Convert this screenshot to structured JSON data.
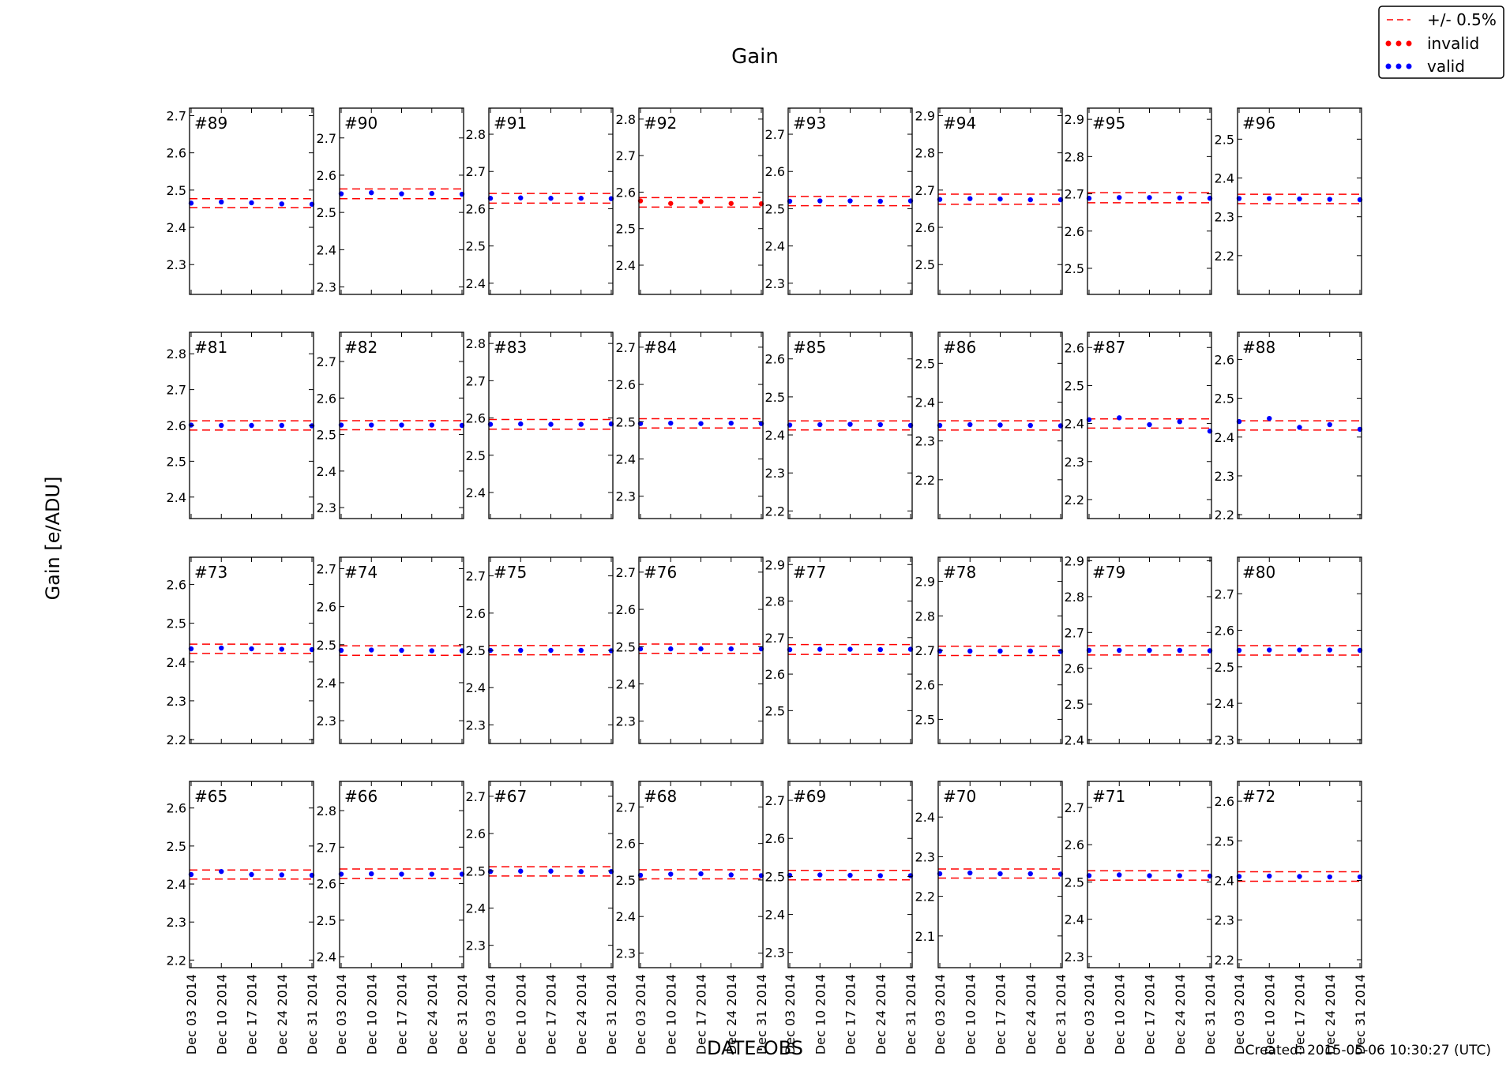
{
  "chart_data": {
    "type": "scatter",
    "title": "Gain",
    "xlabel": "DATE-OBS",
    "ylabel": "Gain [e/ADU]",
    "footer": "Created: 2015-05-06 10:30:27 (UTC)",
    "legend": {
      "placement": "top-right",
      "entries": [
        {
          "label": "+/- 0.5%",
          "marker": "dashed-line",
          "color": "#ff0000"
        },
        {
          "label": "invalid",
          "marker": "dots",
          "color": "#ff0000"
        },
        {
          "label": "valid",
          "marker": "dots",
          "color": "#0000ff"
        }
      ]
    },
    "colors": {
      "valid": "#0000ff",
      "invalid": "#ff0000",
      "band": "#ff0000"
    },
    "x": [
      "2014-12-03",
      "2014-12-10",
      "2014-12-17",
      "2014-12-24",
      "2014-12-31"
    ],
    "x_tick_labels": [
      "Dec 03 2014",
      "Dec 10 2014",
      "Dec 17 2014",
      "Dec 24 2014",
      "Dec 31 2014"
    ],
    "band_pct": 0.5,
    "panels": [
      {
        "label": "#89",
        "ylim": [
          2.22,
          2.72
        ],
        "yticks": [
          2.3,
          2.4,
          2.5,
          2.6,
          2.7
        ],
        "band": [
          2.453,
          2.477
        ],
        "values": [
          2.465,
          2.468,
          2.466,
          2.463,
          2.462
        ],
        "invalid": [
          false,
          false,
          false,
          false,
          false
        ]
      },
      {
        "label": "#90",
        "ylim": [
          2.28,
          2.78
        ],
        "yticks": [
          2.3,
          2.4,
          2.5,
          2.6,
          2.7
        ],
        "band": [
          2.537,
          2.563
        ],
        "values": [
          2.55,
          2.553,
          2.55,
          2.551,
          2.549
        ],
        "invalid": [
          false,
          false,
          false,
          false,
          false
        ]
      },
      {
        "label": "#91",
        "ylim": [
          2.37,
          2.87
        ],
        "yticks": [
          2.4,
          2.5,
          2.6,
          2.7,
          2.8
        ],
        "band": [
          2.615,
          2.641
        ],
        "values": [
          2.628,
          2.629,
          2.628,
          2.628,
          2.627
        ],
        "invalid": [
          false,
          false,
          false,
          false,
          false
        ]
      },
      {
        "label": "#92",
        "ylim": [
          2.32,
          2.83
        ],
        "yticks": [
          2.4,
          2.5,
          2.6,
          2.7,
          2.8
        ],
        "band": [
          2.559,
          2.585
        ],
        "values": [
          2.576,
          2.569,
          2.574,
          2.569,
          2.568
        ],
        "invalid": [
          true,
          true,
          true,
          true,
          true
        ]
      },
      {
        "label": "#93",
        "ylim": [
          2.27,
          2.77
        ],
        "yticks": [
          2.3,
          2.4,
          2.5,
          2.6,
          2.7
        ],
        "band": [
          2.508,
          2.533
        ],
        "values": [
          2.52,
          2.521,
          2.521,
          2.52,
          2.521
        ],
        "invalid": [
          false,
          false,
          false,
          false,
          false
        ]
      },
      {
        "label": "#94",
        "ylim": [
          2.42,
          2.92
        ],
        "yticks": [
          2.5,
          2.6,
          2.7,
          2.8,
          2.9
        ],
        "band": [
          2.662,
          2.689
        ],
        "values": [
          2.675,
          2.677,
          2.676,
          2.674,
          2.674
        ],
        "invalid": [
          false,
          false,
          false,
          false,
          false
        ]
      },
      {
        "label": "#95",
        "ylim": [
          2.43,
          2.93
        ],
        "yticks": [
          2.5,
          2.6,
          2.7,
          2.8,
          2.9
        ],
        "band": [
          2.676,
          2.703
        ],
        "values": [
          2.688,
          2.69,
          2.69,
          2.689,
          2.688
        ],
        "invalid": [
          false,
          false,
          false,
          false,
          false
        ]
      },
      {
        "label": "#96",
        "ylim": [
          2.1,
          2.58
        ],
        "yticks": [
          2.2,
          2.3,
          2.4,
          2.5
        ],
        "band": [
          2.334,
          2.358
        ],
        "values": [
          2.347,
          2.347,
          2.346,
          2.345,
          2.344
        ],
        "invalid": [
          false,
          false,
          false,
          false,
          false
        ]
      },
      {
        "label": "#81",
        "ylim": [
          2.34,
          2.86
        ],
        "yticks": [
          2.4,
          2.5,
          2.6,
          2.7,
          2.8
        ],
        "band": [
          2.587,
          2.613
        ],
        "values": [
          2.601,
          2.6,
          2.6,
          2.6,
          2.599
        ],
        "invalid": [
          false,
          false,
          false,
          false,
          false
        ]
      },
      {
        "label": "#82",
        "ylim": [
          2.27,
          2.78
        ],
        "yticks": [
          2.3,
          2.4,
          2.5,
          2.6,
          2.7
        ],
        "band": [
          2.513,
          2.538
        ],
        "values": [
          2.526,
          2.526,
          2.526,
          2.526,
          2.525
        ],
        "invalid": [
          false,
          false,
          false,
          false,
          false
        ]
      },
      {
        "label": "#83",
        "ylim": [
          2.33,
          2.83
        ],
        "yticks": [
          2.4,
          2.5,
          2.6,
          2.7,
          2.8
        ],
        "band": [
          2.57,
          2.596
        ],
        "values": [
          2.583,
          2.584,
          2.583,
          2.583,
          2.584
        ],
        "invalid": [
          false,
          false,
          false,
          false,
          false
        ]
      },
      {
        "label": "#84",
        "ylim": [
          2.24,
          2.74
        ],
        "yticks": [
          2.3,
          2.4,
          2.5,
          2.6,
          2.7
        ],
        "band": [
          2.483,
          2.508
        ],
        "values": [
          2.495,
          2.496,
          2.495,
          2.496,
          2.495
        ],
        "invalid": [
          false,
          false,
          false,
          false,
          false
        ]
      },
      {
        "label": "#85",
        "ylim": [
          2.18,
          2.67
        ],
        "yticks": [
          2.2,
          2.3,
          2.4,
          2.5,
          2.6
        ],
        "band": [
          2.413,
          2.437
        ],
        "values": [
          2.426,
          2.427,
          2.428,
          2.427,
          2.425
        ],
        "invalid": [
          false,
          false,
          false,
          false,
          false
        ]
      },
      {
        "label": "#86",
        "ylim": [
          2.1,
          2.58
        ],
        "yticks": [
          2.2,
          2.3,
          2.4,
          2.5
        ],
        "band": [
          2.328,
          2.352
        ],
        "values": [
          2.34,
          2.342,
          2.341,
          2.34,
          2.339
        ],
        "invalid": [
          false,
          false,
          false,
          false,
          false
        ]
      },
      {
        "label": "#87",
        "ylim": [
          2.15,
          2.64
        ],
        "yticks": [
          2.2,
          2.3,
          2.4,
          2.5,
          2.6
        ],
        "band": [
          2.388,
          2.412
        ],
        "values": [
          2.41,
          2.415,
          2.397,
          2.405,
          2.38
        ],
        "invalid": [
          false,
          false,
          false,
          false,
          false
        ]
      },
      {
        "label": "#88",
        "ylim": [
          2.19,
          2.67
        ],
        "yticks": [
          2.2,
          2.3,
          2.4,
          2.5,
          2.6
        ],
        "band": [
          2.418,
          2.442
        ],
        "values": [
          2.44,
          2.448,
          2.425,
          2.432,
          2.42
        ],
        "invalid": [
          false,
          false,
          false,
          false,
          false
        ]
      },
      {
        "label": "#73",
        "ylim": [
          2.19,
          2.67
        ],
        "yticks": [
          2.2,
          2.3,
          2.4,
          2.5,
          2.6
        ],
        "band": [
          2.422,
          2.446
        ],
        "values": [
          2.434,
          2.436,
          2.434,
          2.433,
          2.432
        ],
        "invalid": [
          false,
          false,
          false,
          false,
          false
        ]
      },
      {
        "label": "#74",
        "ylim": [
          2.24,
          2.73
        ],
        "yticks": [
          2.3,
          2.4,
          2.5,
          2.6,
          2.7
        ],
        "band": [
          2.472,
          2.497
        ],
        "values": [
          2.485,
          2.486,
          2.485,
          2.484,
          2.484
        ],
        "invalid": [
          false,
          false,
          false,
          false,
          false
        ]
      },
      {
        "label": "#75",
        "ylim": [
          2.25,
          2.75
        ],
        "yticks": [
          2.3,
          2.4,
          2.5,
          2.6,
          2.7
        ],
        "band": [
          2.488,
          2.513
        ],
        "values": [
          2.5,
          2.5,
          2.5,
          2.5,
          2.499
        ],
        "invalid": [
          false,
          false,
          false,
          false,
          false
        ]
      },
      {
        "label": "#76",
        "ylim": [
          2.24,
          2.74
        ],
        "yticks": [
          2.3,
          2.4,
          2.5,
          2.6,
          2.7
        ],
        "band": [
          2.482,
          2.507
        ],
        "values": [
          2.494,
          2.494,
          2.494,
          2.494,
          2.494
        ],
        "invalid": [
          false,
          false,
          false,
          false,
          false
        ]
      },
      {
        "label": "#77",
        "ylim": [
          2.41,
          2.92
        ],
        "yticks": [
          2.5,
          2.6,
          2.7,
          2.8,
          2.9
        ],
        "band": [
          2.654,
          2.681
        ],
        "values": [
          2.667,
          2.668,
          2.668,
          2.667,
          2.668
        ],
        "invalid": [
          false,
          false,
          false,
          false,
          false
        ]
      },
      {
        "label": "#78",
        "ylim": [
          2.43,
          2.97
        ],
        "yticks": [
          2.5,
          2.6,
          2.7,
          2.8,
          2.9
        ],
        "band": [
          2.685,
          2.712
        ],
        "values": [
          2.698,
          2.698,
          2.698,
          2.698,
          2.697
        ],
        "invalid": [
          false,
          false,
          false,
          false,
          false
        ]
      },
      {
        "label": "#79",
        "ylim": [
          2.39,
          2.91
        ],
        "yticks": [
          2.4,
          2.5,
          2.6,
          2.7,
          2.8,
          2.9
        ],
        "band": [
          2.637,
          2.663
        ],
        "values": [
          2.65,
          2.65,
          2.65,
          2.65,
          2.649
        ],
        "invalid": [
          false,
          false,
          false,
          false,
          false
        ]
      },
      {
        "label": "#80",
        "ylim": [
          2.29,
          2.8
        ],
        "yticks": [
          2.3,
          2.4,
          2.5,
          2.6,
          2.7
        ],
        "band": [
          2.532,
          2.558
        ],
        "values": [
          2.545,
          2.546,
          2.546,
          2.546,
          2.545
        ],
        "invalid": [
          false,
          false,
          false,
          false,
          false
        ]
      },
      {
        "label": "#65",
        "ylim": [
          2.18,
          2.67
        ],
        "yticks": [
          2.2,
          2.3,
          2.4,
          2.5,
          2.6
        ],
        "band": [
          2.413,
          2.437
        ],
        "values": [
          2.425,
          2.433,
          2.425,
          2.424,
          2.423
        ],
        "invalid": [
          false,
          false,
          false,
          false,
          false
        ]
      },
      {
        "label": "#66",
        "ylim": [
          2.37,
          2.88
        ],
        "yticks": [
          2.4,
          2.5,
          2.6,
          2.7,
          2.8
        ],
        "band": [
          2.614,
          2.64
        ],
        "values": [
          2.626,
          2.627,
          2.626,
          2.626,
          2.626
        ],
        "invalid": [
          false,
          false,
          false,
          false,
          false
        ]
      },
      {
        "label": "#67",
        "ylim": [
          2.24,
          2.74
        ],
        "yticks": [
          2.3,
          2.4,
          2.5,
          2.6,
          2.7
        ],
        "band": [
          2.486,
          2.511
        ],
        "values": [
          2.498,
          2.499,
          2.499,
          2.498,
          2.498
        ],
        "invalid": [
          false,
          false,
          false,
          false,
          false
        ]
      },
      {
        "label": "#68",
        "ylim": [
          2.26,
          2.77
        ],
        "yticks": [
          2.3,
          2.4,
          2.5,
          2.6,
          2.7
        ],
        "band": [
          2.503,
          2.528
        ],
        "values": [
          2.513,
          2.516,
          2.517,
          2.514,
          2.512
        ],
        "invalid": [
          false,
          false,
          false,
          false,
          false
        ]
      },
      {
        "label": "#69",
        "ylim": [
          2.26,
          2.75
        ],
        "yticks": [
          2.3,
          2.4,
          2.5,
          2.6,
          2.7
        ],
        "band": [
          2.491,
          2.516
        ],
        "values": [
          2.503,
          2.504,
          2.503,
          2.502,
          2.502
        ],
        "invalid": [
          false,
          false,
          false,
          false,
          false
        ]
      },
      {
        "label": "#70",
        "ylim": [
          2.02,
          2.49
        ],
        "yticks": [
          2.1,
          2.2,
          2.3,
          2.4
        ],
        "band": [
          2.246,
          2.269
        ],
        "values": [
          2.257,
          2.259,
          2.257,
          2.257,
          2.256
        ],
        "invalid": [
          false,
          false,
          false,
          false,
          false
        ]
      },
      {
        "label": "#71",
        "ylim": [
          2.27,
          2.77
        ],
        "yticks": [
          2.3,
          2.4,
          2.5,
          2.6,
          2.7
        ],
        "band": [
          2.505,
          2.53
        ],
        "values": [
          2.517,
          2.519,
          2.517,
          2.517,
          2.516
        ],
        "invalid": [
          false,
          false,
          false,
          false,
          false
        ]
      },
      {
        "label": "#72",
        "ylim": [
          2.18,
          2.65
        ],
        "yticks": [
          2.2,
          2.3,
          2.4,
          2.5,
          2.6
        ],
        "band": [
          2.398,
          2.422
        ],
        "values": [
          2.41,
          2.411,
          2.41,
          2.409,
          2.409
        ],
        "invalid": [
          false,
          false,
          false,
          false,
          false
        ]
      }
    ]
  }
}
